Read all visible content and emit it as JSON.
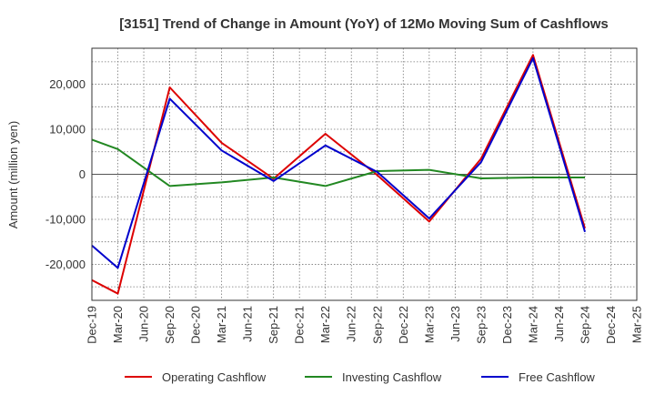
{
  "chart_data": {
    "type": "line",
    "title": "[3151]  Trend of Change in Amount (YoY) of 12Mo Moving Sum of Cashflows",
    "xlabel": "",
    "ylabel": "Amount (million yen)",
    "ylim": [
      -28000,
      28000
    ],
    "yticks": [
      -20000,
      -10000,
      0,
      10000,
      20000
    ],
    "ytick_labels": [
      "-20,000",
      "-10,000",
      "0",
      "10,000",
      "20,000"
    ],
    "categories": [
      "Dec-19",
      "Mar-20",
      "Jun-20",
      "Sep-20",
      "Dec-20",
      "Mar-21",
      "Jun-21",
      "Sep-21",
      "Dec-21",
      "Mar-22",
      "Jun-22",
      "Sep-22",
      "Dec-22",
      "Mar-23",
      "Jun-23",
      "Sep-23",
      "Dec-23",
      "Mar-24",
      "Jun-24",
      "Sep-24",
      "Dec-24",
      "Mar-25"
    ],
    "grid": true,
    "legend_position": "bottom",
    "series": [
      {
        "name": "Operating Cashflow",
        "color": "#dd0000",
        "x": [
          "Dec-19",
          "Mar-20",
          "Sep-20",
          "Mar-21",
          "Sep-21",
          "Mar-22",
          "Sep-22",
          "Mar-23",
          "Sep-23",
          "Mar-24",
          "Sep-24"
        ],
        "values": [
          -23500,
          -26500,
          19300,
          7000,
          -1000,
          9000,
          -200,
          -10500,
          3500,
          26500,
          -12000
        ]
      },
      {
        "name": "Investing Cashflow",
        "color": "#228822",
        "x": [
          "Dec-19",
          "Mar-20",
          "Sep-20",
          "Mar-21",
          "Sep-21",
          "Mar-22",
          "Sep-22",
          "Mar-23",
          "Sep-23",
          "Mar-24",
          "Sep-24"
        ],
        "values": [
          7700,
          5600,
          -2600,
          -1800,
          -700,
          -2600,
          700,
          1000,
          -900,
          -700,
          -700
        ]
      },
      {
        "name": "Free Cashflow",
        "color": "#0000cc",
        "x": [
          "Dec-19",
          "Mar-20",
          "Sep-20",
          "Mar-21",
          "Sep-21",
          "Mar-22",
          "Sep-22",
          "Mar-23",
          "Sep-23",
          "Mar-24",
          "Sep-24"
        ],
        "values": [
          -15800,
          -20800,
          16800,
          5300,
          -1500,
          6400,
          500,
          -9800,
          2700,
          25800,
          -12800
        ]
      }
    ]
  }
}
